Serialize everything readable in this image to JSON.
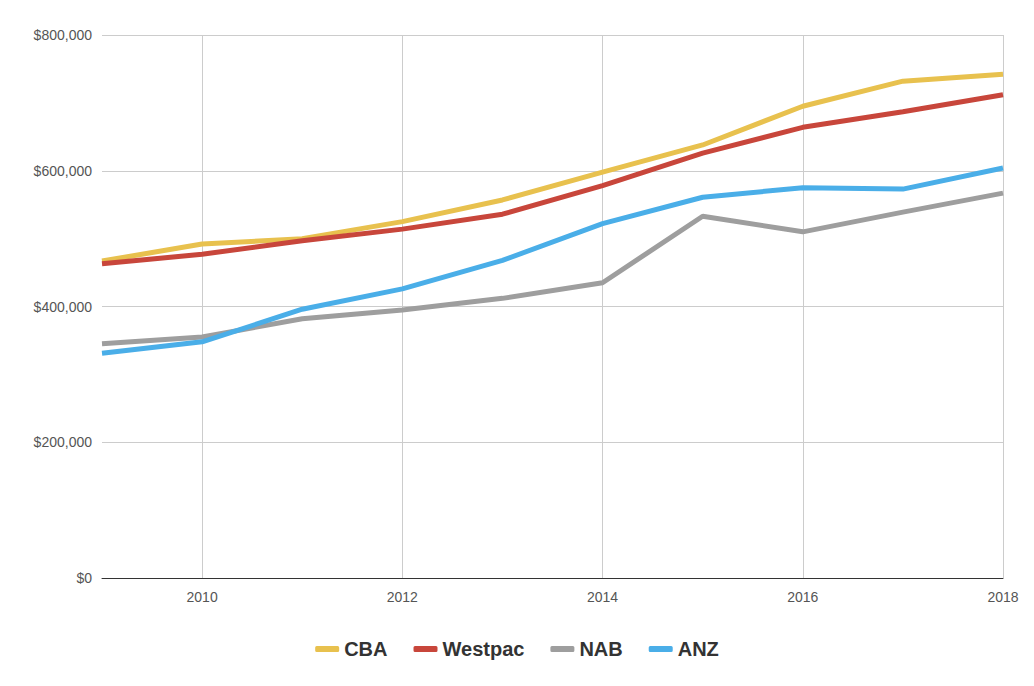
{
  "chart_data": {
    "type": "line",
    "x": [
      2009,
      2010,
      2011,
      2012,
      2013,
      2014,
      2015,
      2016,
      2017,
      2018
    ],
    "series": [
      {
        "name": "CBA",
        "color": "#e8c14e",
        "values": [
          467000,
          492000,
          500000,
          525000,
          557000,
          598000,
          638000,
          695000,
          732000,
          742000
        ]
      },
      {
        "name": "Westpac",
        "color": "#c8463b",
        "values": [
          463000,
          477000,
          497000,
          514000,
          536000,
          578000,
          626000,
          664000,
          687000,
          712000
        ]
      },
      {
        "name": "NAB",
        "color": "#9e9e9e",
        "values": [
          345000,
          355000,
          382000,
          395000,
          412000,
          435000,
          533000,
          510000,
          539000,
          567000
        ]
      },
      {
        "name": "ANZ",
        "color": "#4aaee8",
        "values": [
          331000,
          348000,
          396000,
          426000,
          468000,
          522000,
          561000,
          575000,
          573000,
          604000
        ]
      }
    ],
    "xlim": [
      2009,
      2018
    ],
    "xticks": [
      2010,
      2012,
      2014,
      2016,
      2018
    ],
    "ylim": [
      0,
      800000
    ],
    "yticks": [
      {
        "value": 0,
        "label": "$0"
      },
      {
        "value": 200000,
        "label": "$200,000"
      },
      {
        "value": 400000,
        "label": "$400,000"
      },
      {
        "value": 600000,
        "label": "$600,000"
      },
      {
        "value": 800000,
        "label": "$800,000"
      }
    ],
    "grid": true,
    "legend": "bottom"
  }
}
